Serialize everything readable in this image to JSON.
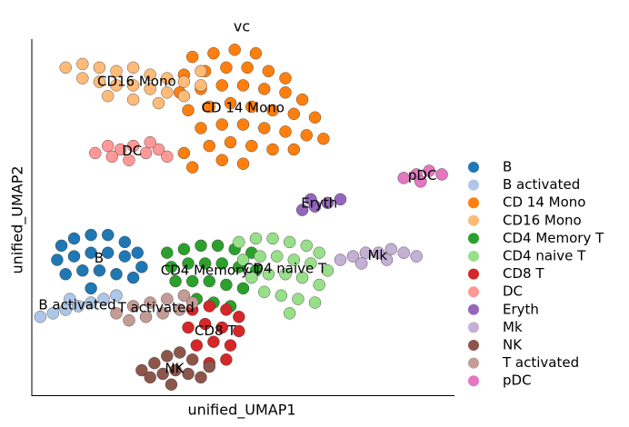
{
  "chart_data": {
    "type": "scatter",
    "title": "vc",
    "x_label": "unified_UMAP1",
    "y_label": "unified_UMAP2",
    "xlim": [
      0,
      100
    ],
    "ylim": [
      0,
      100
    ],
    "series": [
      {
        "name": "B",
        "color": "#1f77b4",
        "x": [
          7,
          10,
          14,
          18,
          22,
          25,
          6,
          10,
          14,
          18,
          22,
          26,
          8,
          12,
          16,
          20,
          24,
          14
        ],
        "values": [
          42,
          44,
          45,
          45,
          43,
          40,
          38,
          39,
          40,
          40,
          39,
          36,
          34,
          35,
          35,
          34,
          33,
          30
        ]
      },
      {
        "name": "B activated",
        "color": "#aec7e8",
        "x": [
          2,
          5,
          8,
          11,
          14,
          17,
          20,
          9
        ],
        "values": [
          22,
          23,
          24,
          25,
          26,
          27,
          28,
          27
        ]
      },
      {
        "name": "CD 14 Mono",
        "color": "#ff7f0e",
        "x": [
          38,
          43,
          48,
          53,
          36,
          41,
          46,
          51,
          56,
          60,
          35,
          40,
          45,
          50,
          55,
          60,
          64,
          37,
          42,
          47,
          52,
          57,
          62,
          67,
          40,
          45,
          50,
          55,
          60,
          65,
          69,
          42,
          47,
          52,
          57,
          62,
          36,
          38,
          45,
          50
        ],
        "values": [
          95,
          96,
          97,
          96,
          90,
          91,
          92,
          92,
          91,
          89,
          85,
          86,
          87,
          87,
          86,
          85,
          83,
          80,
          81,
          82,
          81,
          80,
          79,
          78,
          75,
          76,
          76,
          75,
          74,
          73,
          72,
          70,
          71,
          70,
          69,
          69,
          68,
          64,
          66,
          65
        ]
      },
      {
        "name": "CD16 Mono",
        "color": "#ffbb78",
        "x": [
          8,
          12,
          16,
          20,
          24,
          28,
          32,
          36,
          40,
          12,
          16,
          20,
          24,
          28,
          32,
          36,
          18,
          24,
          30,
          40
        ],
        "values": [
          92,
          93,
          92,
          91,
          92,
          90,
          89,
          88,
          87,
          89,
          88,
          87,
          87,
          86,
          85,
          84,
          84,
          83,
          82,
          91
        ]
      },
      {
        "name": "CD4 Memory T",
        "color": "#2ca02c",
        "x": [
          32,
          36,
          40,
          44,
          48,
          52,
          33,
          37,
          41,
          45,
          49,
          53,
          34,
          38,
          42,
          46,
          50,
          39,
          43,
          47
        ],
        "values": [
          40,
          41,
          42,
          42,
          41,
          40,
          36,
          37,
          37,
          37,
          36,
          35,
          32,
          32,
          32,
          31,
          30,
          27,
          26,
          25
        ]
      },
      {
        "name": "CD4 naive T",
        "color": "#98df8a",
        "x": [
          49,
          53,
          57,
          61,
          65,
          68,
          50,
          54,
          58,
          62,
          66,
          70,
          52,
          56,
          60,
          64,
          68,
          55,
          59,
          63,
          67,
          61
        ],
        "values": [
          43,
          44,
          44,
          43,
          42,
          40,
          38,
          39,
          39,
          38,
          37,
          35,
          33,
          34,
          34,
          33,
          31,
          29,
          28,
          27,
          26,
          23
        ]
      },
      {
        "name": "CD8 T",
        "color": "#d62728",
        "x": [
          38,
          42,
          46,
          49,
          37,
          41,
          45,
          49,
          39,
          43,
          47,
          42,
          46
        ],
        "values": [
          24,
          25,
          24,
          22,
          19,
          20,
          19,
          18,
          14,
          15,
          14,
          9,
          10
        ]
      },
      {
        "name": "DC",
        "color": "#ff9896",
        "x": [
          15,
          18,
          21,
          24,
          27,
          30,
          19,
          23,
          28,
          32
        ],
        "values": [
          68,
          70,
          69,
          70,
          68,
          69,
          67,
          66,
          71,
          67
        ]
      },
      {
        "name": "Eryth",
        "color": "#9467bd",
        "x": [
          64,
          67,
          70,
          73,
          66
        ],
        "values": [
          52,
          53,
          54,
          55,
          55
        ]
      },
      {
        "name": "Mk",
        "color": "#c5b0d5",
        "x": [
          73,
          76,
          79,
          82,
          85,
          88,
          91,
          78,
          84
        ],
        "values": [
          38,
          39,
          40,
          40,
          41,
          40,
          39,
          37,
          38
        ]
      },
      {
        "name": "NK",
        "color": "#8c564b",
        "x": [
          26,
          29,
          32,
          35,
          38,
          28,
          31,
          34,
          37,
          40,
          33,
          42
        ],
        "values": [
          7,
          9,
          11,
          12,
          10,
          5,
          6,
          7,
          6,
          5,
          3,
          8
        ]
      },
      {
        "name": "T activated",
        "color": "#c49c94",
        "x": [
          20,
          24,
          28,
          32,
          36,
          23,
          27,
          31,
          35,
          38
        ],
        "values": [
          23,
          25,
          26,
          27,
          28,
          21,
          22,
          23,
          24,
          26
        ]
      },
      {
        "name": "pDC",
        "color": "#e377c2",
        "x": [
          88,
          91,
          94,
          97,
          92
        ],
        "values": [
          61,
          62,
          63,
          62,
          60
        ]
      }
    ]
  }
}
